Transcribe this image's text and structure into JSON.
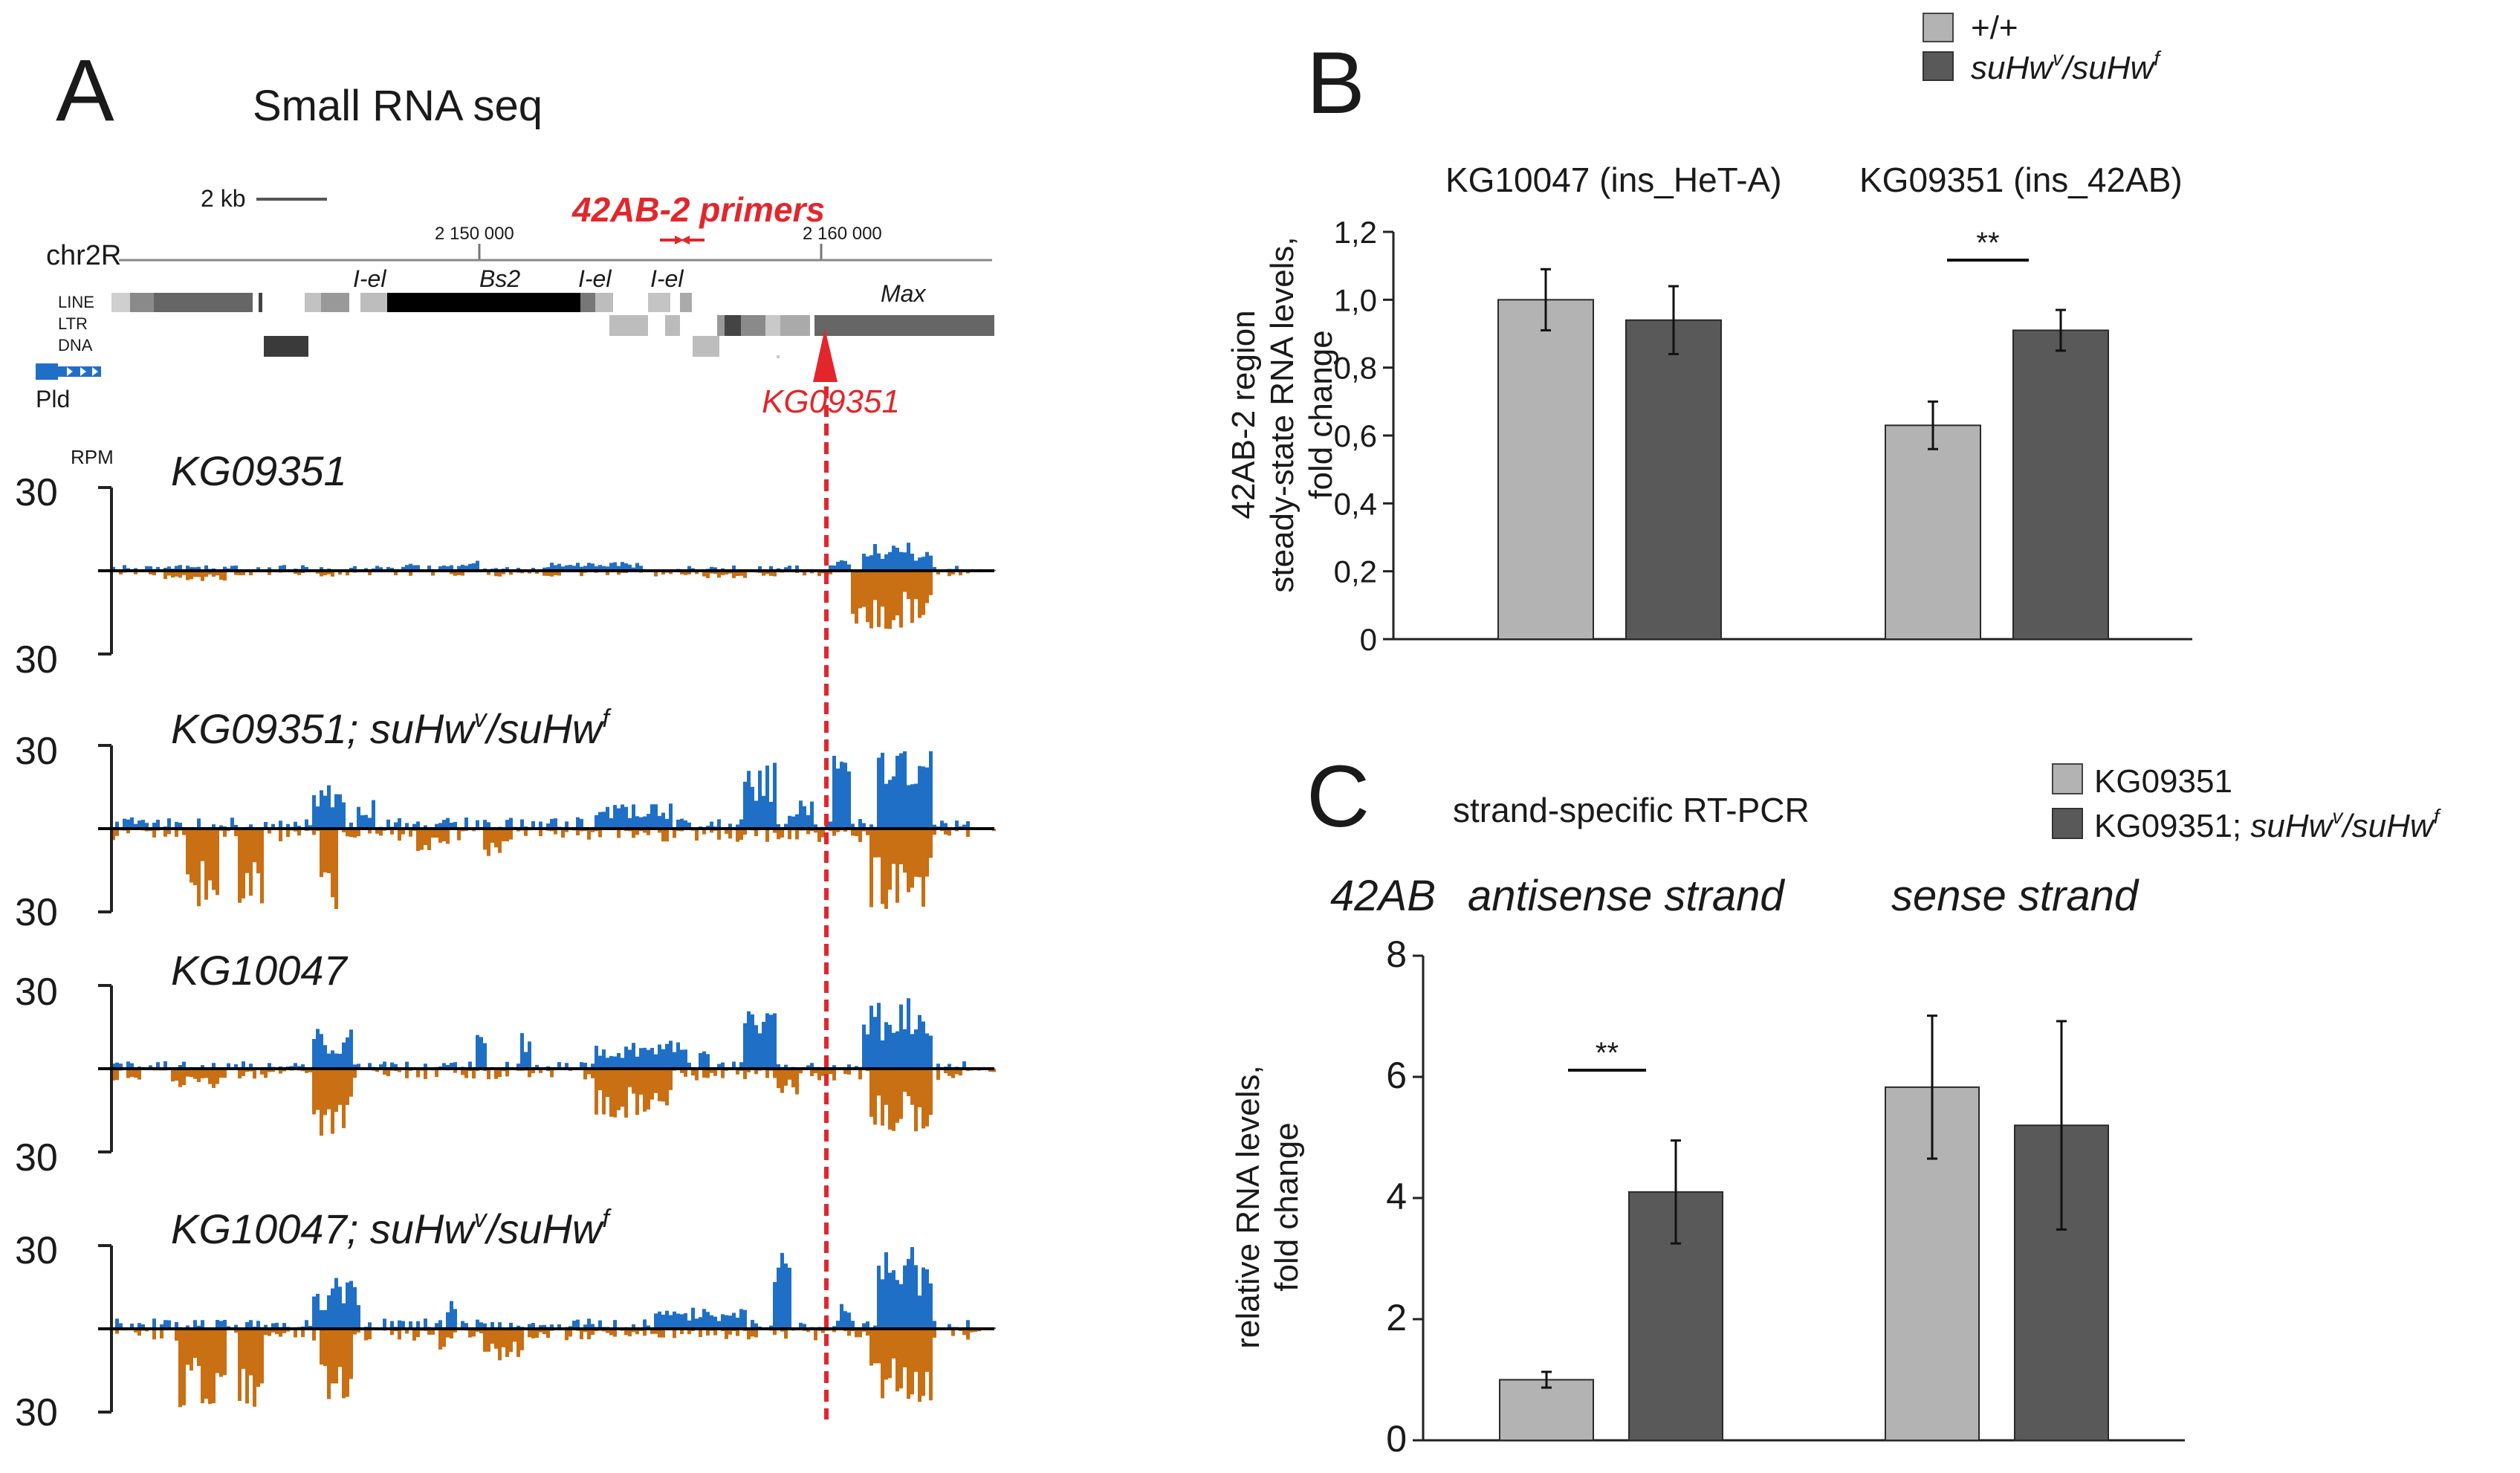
{
  "colors": {
    "light_bar": "#b3b3b3",
    "dark_bar": "#595959",
    "plus_strand": "#1f6fc7",
    "minus_strand": "#c96f14",
    "marker_red": "#e3262c"
  },
  "panel_a": {
    "letter": "A",
    "title": "Small RNA seq",
    "scale_label": "2 kb",
    "chrom_label": "chr2R",
    "coord_1": "2 150 000",
    "coord_2": "2 160 000",
    "primers_label": "42AB-2 primers",
    "element_labels": {
      "iel1": "I-el",
      "bs2": "Bs2",
      "iel2": "I-el",
      "iel3": "I-el",
      "max": "Max"
    },
    "track_line": "LINE",
    "track_ltr": "LTR",
    "track_dna": "DNA",
    "gene_pld": "Pld",
    "insertion_label": "KG09351",
    "rpm_label": "RPM",
    "tracks": [
      {
        "name": "KG09351",
        "suffix": "",
        "top_tick": "30",
        "bottom_tick": "30"
      },
      {
        "name": "KG09351; suHw",
        "suffix": "/suHw",
        "sup1": "v",
        "sup2": "f",
        "top_tick": "30",
        "bottom_tick": "30"
      },
      {
        "name": "KG10047",
        "suffix": "",
        "top_tick": "30",
        "bottom_tick": "30"
      },
      {
        "name": "KG10047; suHw",
        "suffix": "/suHw",
        "sup1": "v",
        "sup2": "f",
        "top_tick": "30",
        "bottom_tick": "30"
      }
    ]
  },
  "legend_b": {
    "item1": "+/+",
    "item2_base": "suHw",
    "item2_sup1": "v",
    "item2_mid": "/suHw",
    "item2_sup2": "f"
  },
  "legend_c": {
    "item1": "KG09351",
    "item2_prefix": "KG09351; ",
    "item2_base": "suHw",
    "item2_sup1": "v",
    "item2_mid": "/suHw",
    "item2_sup2": "f"
  },
  "chart_data": [
    {
      "panel": "B",
      "type": "bar",
      "ylabel_line1": "42AB-2 region",
      "ylabel_line2": "steady-state RNA levels,",
      "ylabel_line3": "fold change",
      "group_label_1": "KG10047 (ins_HeT-A)",
      "group_label_2": "KG09351 (ins_42AB)",
      "ylim": [
        0,
        1.2
      ],
      "yticks": [
        "0",
        "0,2",
        "0,4",
        "0,6",
        "0,8",
        "1,0",
        "1,2"
      ],
      "series": [
        {
          "name": "+/+",
          "values": [
            1.0,
            0.63
          ],
          "errors": [
            0.09,
            0.07
          ]
        },
        {
          "name": "suHw v/suHw f",
          "values": [
            0.94,
            0.91
          ],
          "errors": [
            0.1,
            0.06
          ]
        }
      ],
      "significance": "**"
    },
    {
      "panel": "C",
      "type": "bar",
      "subtitle": "strand-specific RT-PCR",
      "ylabel_line1": "relative RNA levels,",
      "ylabel_line2": "fold change",
      "group_prefix": "42AB",
      "group_label_1": "antisense strand",
      "group_label_2": "sense strand",
      "ylim": [
        0,
        8
      ],
      "yticks": [
        "0",
        "2",
        "4",
        "6",
        "8"
      ],
      "series": [
        {
          "name": "KG09351",
          "values": [
            1.0,
            5.83
          ],
          "errors": [
            0.13,
            1.18
          ]
        },
        {
          "name": "KG09351; suHw v/suHw f",
          "values": [
            4.1,
            5.2
          ],
          "errors": [
            0.85,
            1.72
          ]
        }
      ],
      "significance": "**"
    }
  ]
}
